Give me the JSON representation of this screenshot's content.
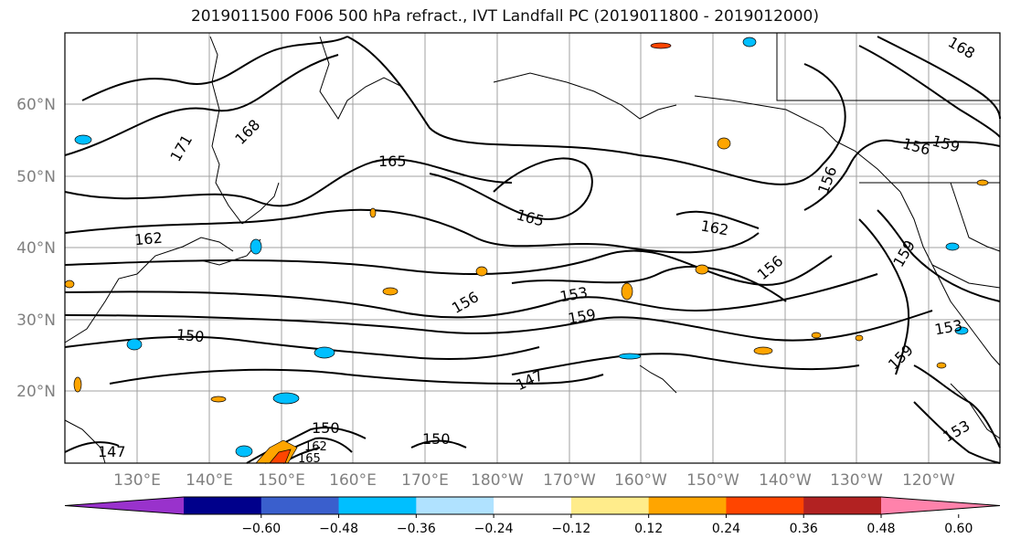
{
  "title": "2019011500 F006 500 hPa refract., IVT Landfall PC (2019011800 - 2019012000)",
  "lat_labels": [
    "60°N",
    "50°N",
    "40°N",
    "30°N",
    "20°N"
  ],
  "lon_labels": [
    "130°E",
    "140°E",
    "150°E",
    "160°E",
    "170°E",
    "180°W",
    "170°W",
    "160°W",
    "150°W",
    "140°W",
    "130°W",
    "120°W"
  ],
  "contour_labels": [
    "168",
    "171",
    "165",
    "162",
    "165",
    "162",
    "156",
    "156",
    "153",
    "159",
    "150",
    "147",
    "147",
    "150",
    "150",
    "165",
    "162",
    "159",
    "156",
    "159",
    "153",
    "159",
    "156",
    "153",
    "168"
  ],
  "colorbar": {
    "ticks": [
      "−0.60",
      "−0.48",
      "−0.36",
      "−0.24",
      "−0.12",
      "0.12",
      "0.24",
      "0.36",
      "0.48",
      "0.60"
    ],
    "colors": [
      "#9932cc",
      "#00008b",
      "#3a5fcd",
      "#00bfff",
      "#b0e2ff",
      "#ffffff",
      "#ffec8b",
      "#ffa500",
      "#ff4500",
      "#b22222",
      "#ff82ab"
    ]
  },
  "colors": {
    "contour": "#000000",
    "grid": "#a0a0a0",
    "axis_label": "#808080"
  }
}
